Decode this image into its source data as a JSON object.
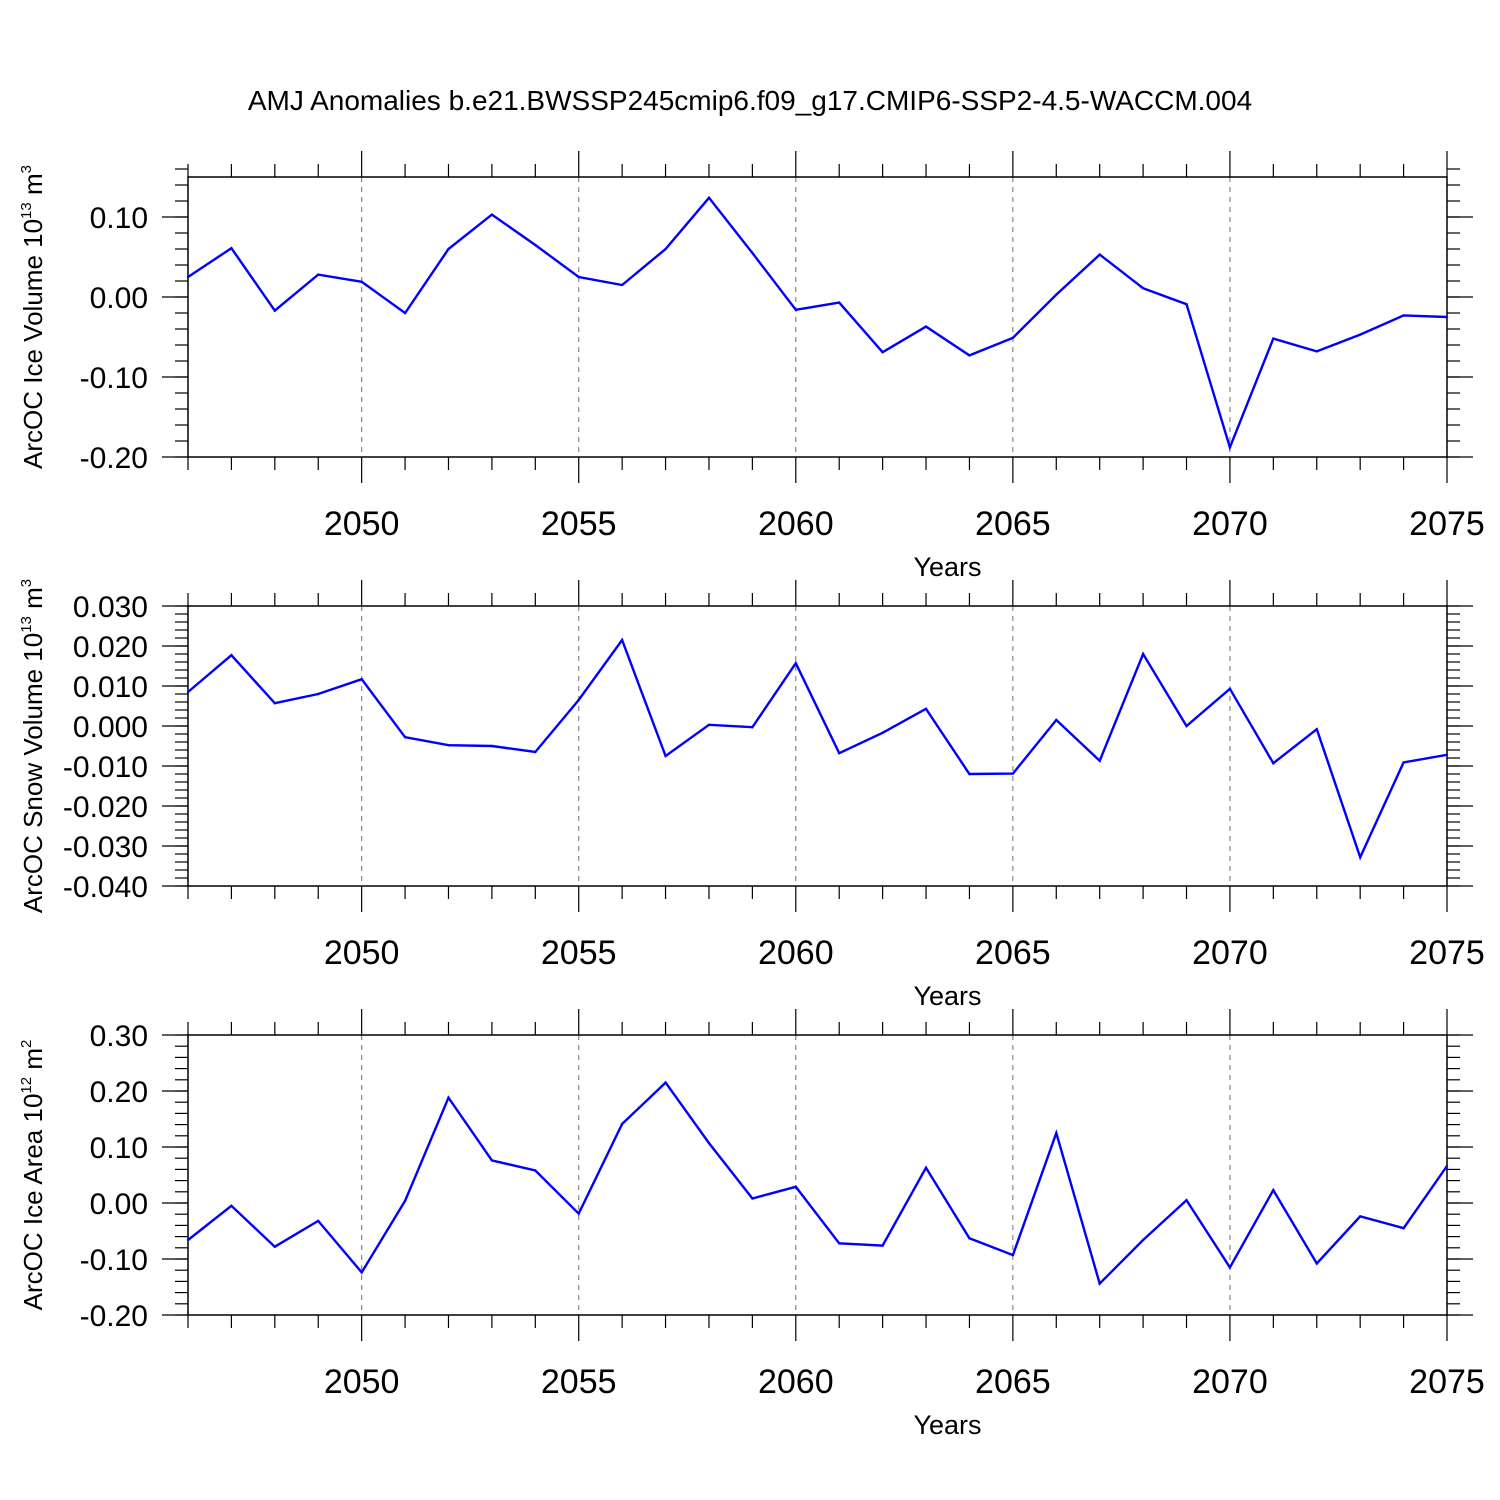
{
  "title": "AMJ Anomalies b.e21.BWSSP245cmip6.f09_g17.CMIP6-SSP2-4.5-WACCM.004",
  "chart_data": [
    {
      "type": "line",
      "ylabel": {
        "text": "ArcOC Ice Volume 10",
        "sup": "13",
        "unit": " m",
        "unit_sup": "3"
      },
      "xlabel": "Years",
      "xlim": [
        2046,
        2075
      ],
      "ylim": [
        -0.2,
        0.15
      ],
      "yticks": [
        -0.2,
        -0.1,
        0.0,
        0.1
      ],
      "yticklabels": [
        "-0.20",
        "-0.10",
        "0.00",
        "0.10"
      ],
      "yminor": 0.02,
      "xticks": [
        2050,
        2055,
        2060,
        2065,
        2070,
        2075
      ],
      "xticklabels": [
        "2050",
        "2055",
        "2060",
        "2065",
        "2070",
        "2075"
      ],
      "grid": "vertical dashed at major x ticks",
      "line_color": "#0000ff",
      "x": [
        2046,
        2047,
        2048,
        2049,
        2050,
        2051,
        2052,
        2053,
        2054,
        2055,
        2056,
        2057,
        2058,
        2059,
        2060,
        2061,
        2062,
        2063,
        2064,
        2065,
        2066,
        2067,
        2068,
        2069,
        2070,
        2071,
        2072,
        2073,
        2074,
        2075
      ],
      "values": [
        0.025,
        0.061,
        -0.017,
        0.028,
        0.019,
        -0.02,
        0.06,
        0.103,
        0.065,
        0.025,
        0.015,
        0.06,
        0.124,
        0.055,
        -0.016,
        -0.007,
        -0.069,
        -0.037,
        -0.073,
        -0.051,
        0.003,
        0.053,
        0.011,
        -0.009,
        -0.188,
        -0.052,
        -0.068,
        -0.047,
        -0.023,
        -0.025
      ]
    },
    {
      "type": "line",
      "ylabel": {
        "text": "ArcOC Snow Volume 10",
        "sup": "13",
        "unit": " m",
        "unit_sup": "3"
      },
      "xlabel": "Years",
      "xlim": [
        2046,
        2075
      ],
      "ylim": [
        -0.04,
        0.03
      ],
      "yticks": [
        -0.04,
        -0.03,
        -0.02,
        -0.01,
        0.0,
        0.01,
        0.02,
        0.03
      ],
      "yticklabels": [
        "-0.040",
        "-0.030",
        "-0.020",
        "-0.010",
        "0.000",
        "0.010",
        "0.020",
        "0.030"
      ],
      "yminor": 0.002,
      "xticks": [
        2050,
        2055,
        2060,
        2065,
        2070,
        2075
      ],
      "xticklabels": [
        "2050",
        "2055",
        "2060",
        "2065",
        "2070",
        "2075"
      ],
      "grid": "vertical dashed at major x ticks",
      "line_color": "#0000ff",
      "x": [
        2046,
        2047,
        2048,
        2049,
        2050,
        2051,
        2052,
        2053,
        2054,
        2055,
        2056,
        2057,
        2058,
        2059,
        2060,
        2061,
        2062,
        2063,
        2064,
        2065,
        2066,
        2067,
        2068,
        2069,
        2070,
        2071,
        2072,
        2073,
        2074,
        2075
      ],
      "values": [
        0.0085,
        0.0177,
        0.0057,
        0.008,
        0.0117,
        -0.0028,
        -0.0048,
        -0.005,
        -0.0065,
        0.0065,
        0.0215,
        -0.0075,
        0.0003,
        -0.0003,
        0.0157,
        -0.0068,
        -0.0017,
        0.0043,
        -0.012,
        -0.0119,
        0.0015,
        -0.0087,
        0.018,
        0.0,
        0.0093,
        -0.0093,
        -0.0008,
        -0.0328,
        -0.0091,
        -0.0072
      ]
    },
    {
      "type": "line",
      "ylabel": {
        "text": "ArcOC Ice Area 10",
        "sup": "12",
        "unit": " m",
        "unit_sup": "2"
      },
      "xlabel": "Years",
      "xlim": [
        2046,
        2075
      ],
      "ylim": [
        -0.2,
        0.3
      ],
      "yticks": [
        -0.2,
        -0.1,
        0.0,
        0.1,
        0.2,
        0.3
      ],
      "yticklabels": [
        "-0.20",
        "-0.10",
        "0.00",
        "0.10",
        "0.20",
        "0.30"
      ],
      "yminor": 0.02,
      "xticks": [
        2050,
        2055,
        2060,
        2065,
        2070,
        2075
      ],
      "xticklabels": [
        "2050",
        "2055",
        "2060",
        "2065",
        "2070",
        "2075"
      ],
      "grid": "vertical dashed at major x ticks",
      "line_color": "#0000ff",
      "x": [
        2046,
        2047,
        2048,
        2049,
        2050,
        2051,
        2052,
        2053,
        2054,
        2055,
        2056,
        2057,
        2058,
        2059,
        2060,
        2061,
        2062,
        2063,
        2064,
        2065,
        2066,
        2067,
        2068,
        2069,
        2070,
        2071,
        2072,
        2073,
        2074,
        2075
      ],
      "values": [
        -0.066,
        -0.005,
        -0.078,
        -0.032,
        -0.124,
        0.004,
        0.188,
        0.076,
        0.058,
        -0.019,
        0.141,
        0.215,
        0.107,
        0.008,
        0.029,
        -0.072,
        -0.076,
        0.063,
        -0.063,
        -0.093,
        0.125,
        -0.144,
        -0.066,
        0.005,
        -0.115,
        0.023,
        -0.108,
        -0.024,
        -0.045,
        0.066
      ]
    }
  ]
}
